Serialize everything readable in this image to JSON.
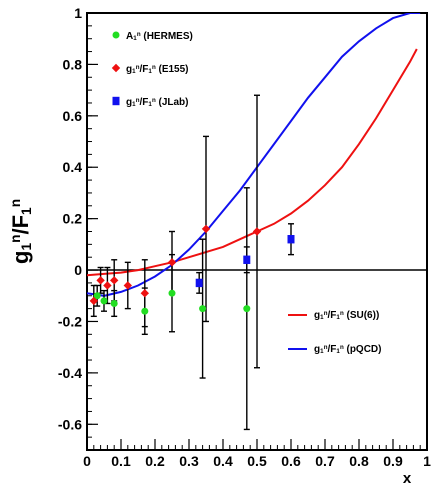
{
  "chart_data": {
    "type": "scatter",
    "title": "",
    "xlabel": "x",
    "ylabel": "g_1^n/F_1^n",
    "xlim": [
      0,
      1
    ],
    "ylim": [
      -0.7,
      1
    ],
    "x_ticks": [
      0,
      0.1,
      0.2,
      0.3,
      0.4,
      0.5,
      0.6,
      0.7,
      0.8,
      0.9,
      1
    ],
    "x_tick_labels": [
      "0",
      "0.1",
      "0.2",
      "0.3",
      "0.4",
      "0.5",
      "0.6",
      "0.7",
      "0.8",
      "0.9",
      "1"
    ],
    "y_ticks": [
      -0.6,
      -0.4,
      -0.2,
      0,
      0.2,
      0.4,
      0.6,
      0.8,
      1
    ],
    "y_tick_labels": [
      "-0.6",
      "-0.4",
      "-0.2",
      "0",
      "0.2",
      "0.4",
      "0.6",
      "0.8",
      "1"
    ],
    "zero_line": true,
    "grid": false,
    "legend_top": "top-left",
    "legend_bottom": "bottom-right",
    "series": [
      {
        "name": "A_1^n (HERMES)",
        "color": "#22dd22",
        "marker": "circle",
        "points": [
          {
            "x": 0.03,
            "y": -0.1,
            "err": 0.04
          },
          {
            "x": 0.05,
            "y": -0.12,
            "err": 0.04
          },
          {
            "x": 0.08,
            "y": -0.13,
            "err": 0.05
          },
          {
            "x": 0.17,
            "y": -0.16,
            "err": 0.09
          },
          {
            "x": 0.25,
            "y": -0.09,
            "err": 0.15
          },
          {
            "x": 0.34,
            "y": -0.15,
            "err": 0.27
          },
          {
            "x": 0.47,
            "y": -0.15,
            "err": 0.47
          }
        ]
      },
      {
        "name": "g_1^n/F_1^n (E155)",
        "color": "#ee1111",
        "marker": "diamond",
        "points": [
          {
            "x": 0.02,
            "y": -0.12,
            "err": 0.06
          },
          {
            "x": 0.04,
            "y": -0.04,
            "err": 0.05
          },
          {
            "x": 0.06,
            "y": -0.06,
            "err": 0.07
          },
          {
            "x": 0.08,
            "y": -0.04,
            "err": 0.08
          },
          {
            "x": 0.12,
            "y": -0.06,
            "err": 0.09
          },
          {
            "x": 0.17,
            "y": -0.09,
            "err": 0.13
          },
          {
            "x": 0.25,
            "y": 0.03,
            "err": 0.12
          },
          {
            "x": 0.35,
            "y": 0.16,
            "err": 0.36
          },
          {
            "x": 0.5,
            "y": 0.15,
            "err": 0.53
          }
        ]
      },
      {
        "name": "g_1^n/F_1^n (JLab)",
        "color": "#1111ee",
        "marker": "square",
        "points": [
          {
            "x": 0.33,
            "y": -0.05,
            "err": 0.04
          },
          {
            "x": 0.47,
            "y": 0.04,
            "err": 0.05
          },
          {
            "x": 0.6,
            "y": 0.12,
            "err": 0.06
          }
        ]
      }
    ],
    "curves": [
      {
        "name": "g_1^n/F_1^n (SU(6))",
        "color": "#ee1111",
        "x": [
          0,
          0.05,
          0.1,
          0.15,
          0.2,
          0.25,
          0.3,
          0.35,
          0.4,
          0.45,
          0.5,
          0.55,
          0.6,
          0.65,
          0.7,
          0.75,
          0.8,
          0.85,
          0.9,
          0.95,
          0.97
        ],
        "y": [
          -0.02,
          -0.015,
          -0.01,
          0.0,
          0.015,
          0.03,
          0.05,
          0.07,
          0.09,
          0.12,
          0.15,
          0.18,
          0.22,
          0.27,
          0.33,
          0.4,
          0.49,
          0.59,
          0.7,
          0.81,
          0.86
        ]
      },
      {
        "name": "g_1^n/F_1^n (pQCD)",
        "color": "#1111ee",
        "x": [
          0,
          0.05,
          0.1,
          0.15,
          0.2,
          0.25,
          0.3,
          0.35,
          0.4,
          0.45,
          0.5,
          0.55,
          0.6,
          0.65,
          0.7,
          0.75,
          0.8,
          0.85,
          0.9,
          0.95,
          0.98
        ],
        "y": [
          -0.09,
          -0.1,
          -0.085,
          -0.06,
          -0.025,
          0.02,
          0.08,
          0.15,
          0.23,
          0.31,
          0.4,
          0.49,
          0.58,
          0.67,
          0.75,
          0.83,
          0.89,
          0.94,
          0.98,
          1.0,
          1.0
        ]
      }
    ]
  }
}
